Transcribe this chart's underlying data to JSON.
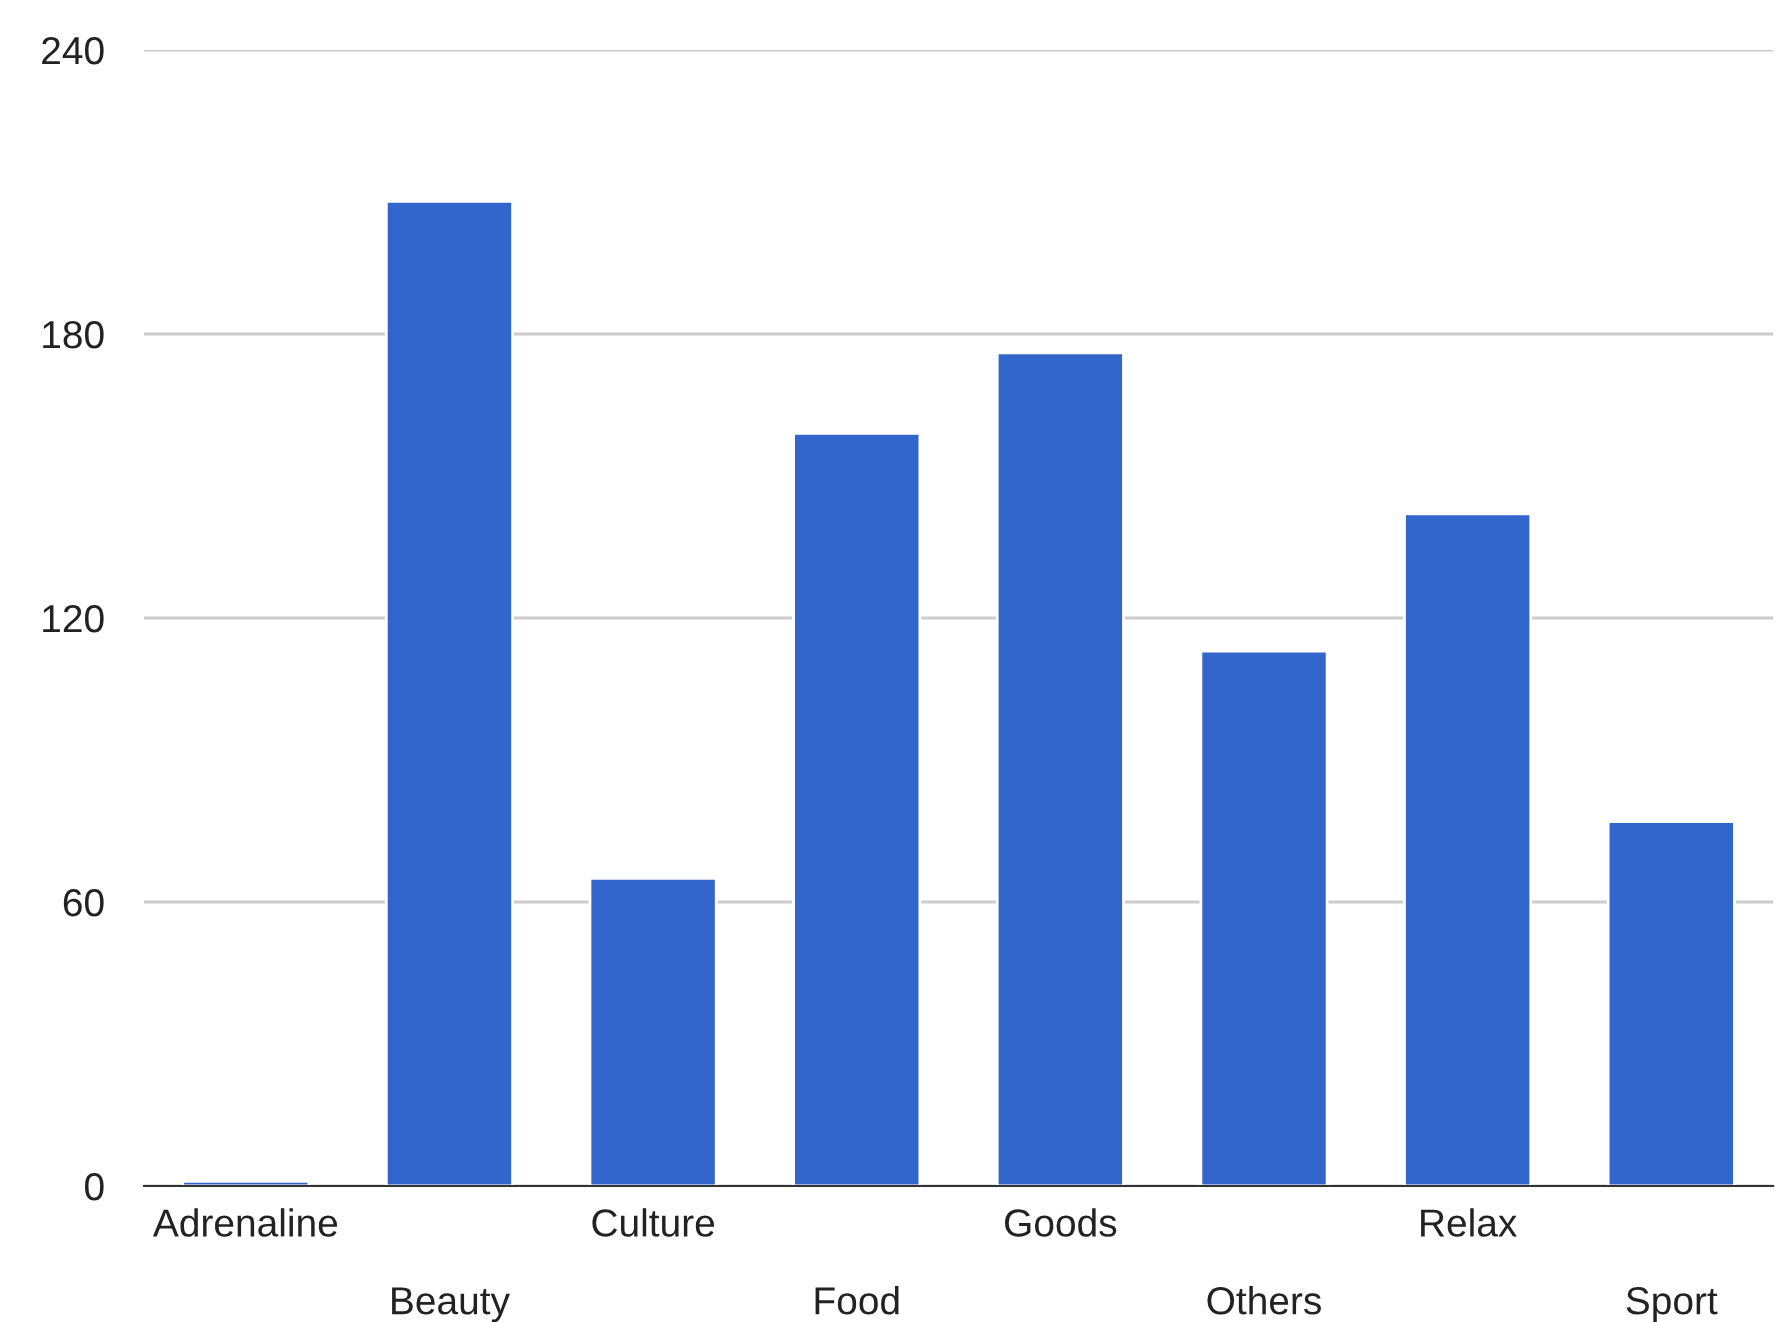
{
  "chart_data": {
    "type": "bar",
    "categories": [
      "Adrenaline",
      "Beauty",
      "Culture",
      "Food",
      "Goods",
      "Others",
      "Relax",
      "Sport"
    ],
    "values": [
      1,
      208,
      65,
      159,
      176,
      113,
      142,
      77
    ],
    "color": "#3366cc",
    "ylim": [
      0,
      240
    ],
    "yticks": [
      0,
      60,
      120,
      180,
      240
    ],
    "grid": "y",
    "legend": false
  }
}
